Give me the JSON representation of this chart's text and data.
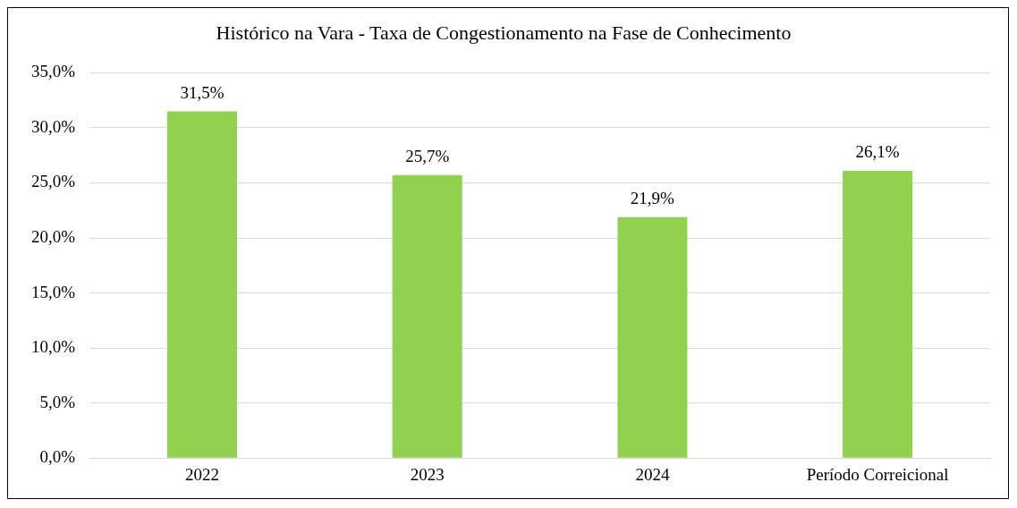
{
  "chart_data": {
    "type": "bar",
    "title": "Histórico na Vara - Taxa de Congestionamento na Fase de Conhecimento",
    "categories": [
      "2022",
      "2023",
      "2024",
      "Período Correicional"
    ],
    "values": [
      31.5,
      25.7,
      21.9,
      26.1
    ],
    "value_labels": [
      "31,5%",
      "25,7%",
      "21,9%",
      "26,1%"
    ],
    "color": "#92d050",
    "ylim": [
      0,
      35
    ],
    "yticks": [
      {
        "value": 0,
        "label": "0,0%"
      },
      {
        "value": 5,
        "label": "5,0%"
      },
      {
        "value": 10,
        "label": "10,0%"
      },
      {
        "value": 15,
        "label": "15,0%"
      },
      {
        "value": 20,
        "label": "20,0%"
      },
      {
        "value": 25,
        "label": "25,0%"
      },
      {
        "value": 30,
        "label": "30,0%"
      },
      {
        "value": 35,
        "label": "35,0%"
      }
    ],
    "grid": "y"
  }
}
